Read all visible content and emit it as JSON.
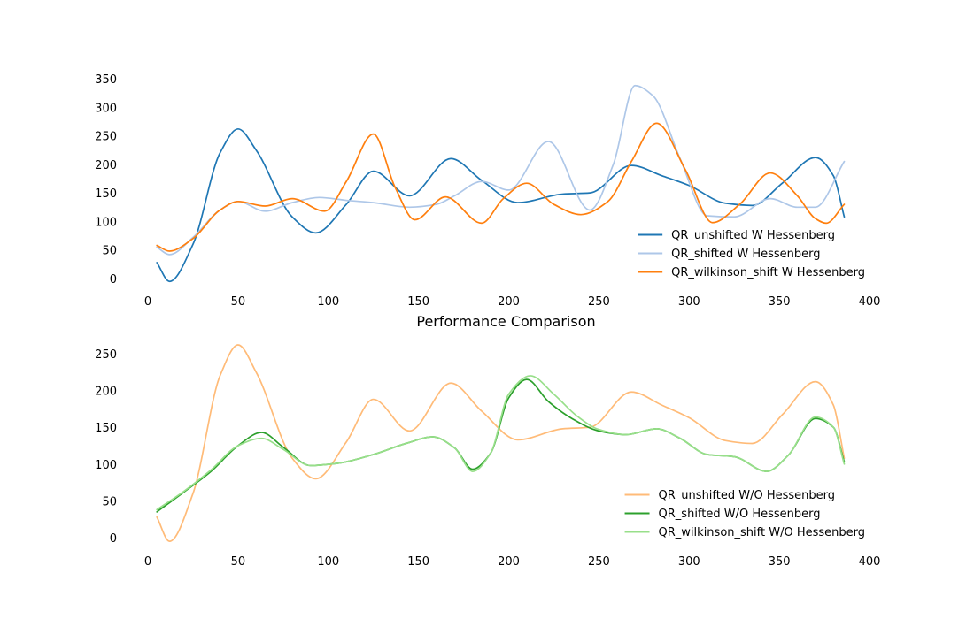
{
  "chart_data": [
    {
      "type": "line",
      "title": "",
      "xlabel": "",
      "ylabel": "",
      "xlim": [
        0,
        400
      ],
      "ylim": [
        0,
        350
      ],
      "xticks": [
        0,
        50,
        100,
        150,
        200,
        250,
        300,
        350,
        400
      ],
      "yticks": [
        0,
        50,
        100,
        150,
        200,
        250,
        300,
        350
      ],
      "grid": false,
      "legend_position": "lower-right",
      "series": [
        {
          "name": "QR_unshifted W Hessenberg",
          "color": "#1f77b4",
          "x": [
            5,
            12,
            25,
            40,
            50,
            60,
            80,
            93,
            110,
            125,
            145,
            168,
            185,
            205,
            230,
            245,
            268,
            285,
            300,
            320,
            335,
            352,
            370,
            380,
            386
          ],
          "y": [
            28,
            -5,
            60,
            220,
            262,
            225,
            108,
            80,
            130,
            188,
            145,
            210,
            172,
            133,
            148,
            150,
            198,
            180,
            163,
            132,
            128,
            168,
            212,
            180,
            108
          ]
        },
        {
          "name": "QR_shifted W Hessenberg",
          "color": "#aec7e8",
          "x": [
            5,
            12,
            25,
            40,
            50,
            65,
            80,
            95,
            110,
            125,
            145,
            160,
            170,
            185,
            200,
            222,
            245,
            258,
            270,
            280,
            295,
            310,
            325,
            345,
            360,
            370,
            386
          ],
          "y": [
            55,
            42,
            72,
            120,
            135,
            118,
            133,
            142,
            137,
            133,
            125,
            130,
            145,
            170,
            155,
            240,
            120,
            200,
            338,
            320,
            210,
            110,
            108,
            140,
            125,
            125,
            205
          ]
        },
        {
          "name": "QR_wilkinson_shift W Hessenberg",
          "color": "#ff7f0e",
          "x": [
            5,
            12,
            25,
            40,
            50,
            65,
            80,
            98,
            110,
            125,
            137,
            148,
            165,
            185,
            197,
            210,
            225,
            240,
            255,
            268,
            282,
            298,
            313,
            328,
            345,
            360,
            370,
            376,
            386
          ],
          "y": [
            58,
            48,
            70,
            120,
            135,
            127,
            140,
            118,
            170,
            253,
            160,
            103,
            143,
            97,
            140,
            167,
            130,
            112,
            135,
            205,
            272,
            190,
            98,
            130,
            185,
            145,
            105,
            97,
            130
          ]
        }
      ]
    },
    {
      "type": "line",
      "title": "Performance Comparison",
      "xlabel": "",
      "ylabel": "",
      "xlim": [
        0,
        400
      ],
      "ylim": [
        0,
        250
      ],
      "xticks": [
        0,
        50,
        100,
        150,
        200,
        250,
        300,
        350,
        400
      ],
      "yticks": [
        0,
        50,
        100,
        150,
        200,
        250
      ],
      "grid": false,
      "legend_position": "lower-right",
      "series": [
        {
          "name": "QR_unshifted W/O Hessenberg",
          "color": "#ffbb78",
          "x": [
            5,
            12,
            25,
            40,
            50,
            60,
            80,
            93,
            110,
            125,
            145,
            168,
            185,
            205,
            230,
            245,
            268,
            285,
            300,
            320,
            335,
            352,
            370,
            380,
            386
          ],
          "y": [
            28,
            -5,
            60,
            220,
            262,
            225,
            108,
            80,
            130,
            188,
            145,
            210,
            172,
            133,
            148,
            150,
            198,
            180,
            163,
            132,
            128,
            168,
            212,
            180,
            108
          ]
        },
        {
          "name": "QR_shifted W/O Hessenberg",
          "color": "#2ca02c",
          "x": [
            5,
            20,
            35,
            50,
            63,
            75,
            90,
            105,
            125,
            143,
            158,
            170,
            180,
            190,
            200,
            210,
            222,
            235,
            250,
            265,
            282,
            295,
            310,
            325,
            343,
            355,
            370,
            380,
            386
          ],
          "y": [
            35,
            62,
            90,
            125,
            143,
            123,
            98,
            101,
            113,
            128,
            137,
            122,
            93,
            115,
            190,
            215,
            185,
            162,
            145,
            140,
            148,
            135,
            113,
            110,
            90,
            112,
            162,
            150,
            103
          ]
        },
        {
          "name": "QR_wilkinson_shift W/O Hessenberg",
          "color": "#98df8a",
          "x": [
            5,
            20,
            35,
            50,
            63,
            75,
            90,
            105,
            125,
            143,
            158,
            170,
            180,
            190,
            200,
            212,
            225,
            238,
            250,
            265,
            282,
            295,
            310,
            325,
            343,
            355,
            370,
            380,
            386
          ],
          "y": [
            38,
            63,
            92,
            125,
            135,
            120,
            98,
            101,
            113,
            128,
            137,
            122,
            90,
            115,
            195,
            220,
            195,
            165,
            147,
            140,
            148,
            135,
            113,
            110,
            90,
            112,
            164,
            150,
            100
          ]
        }
      ]
    }
  ]
}
